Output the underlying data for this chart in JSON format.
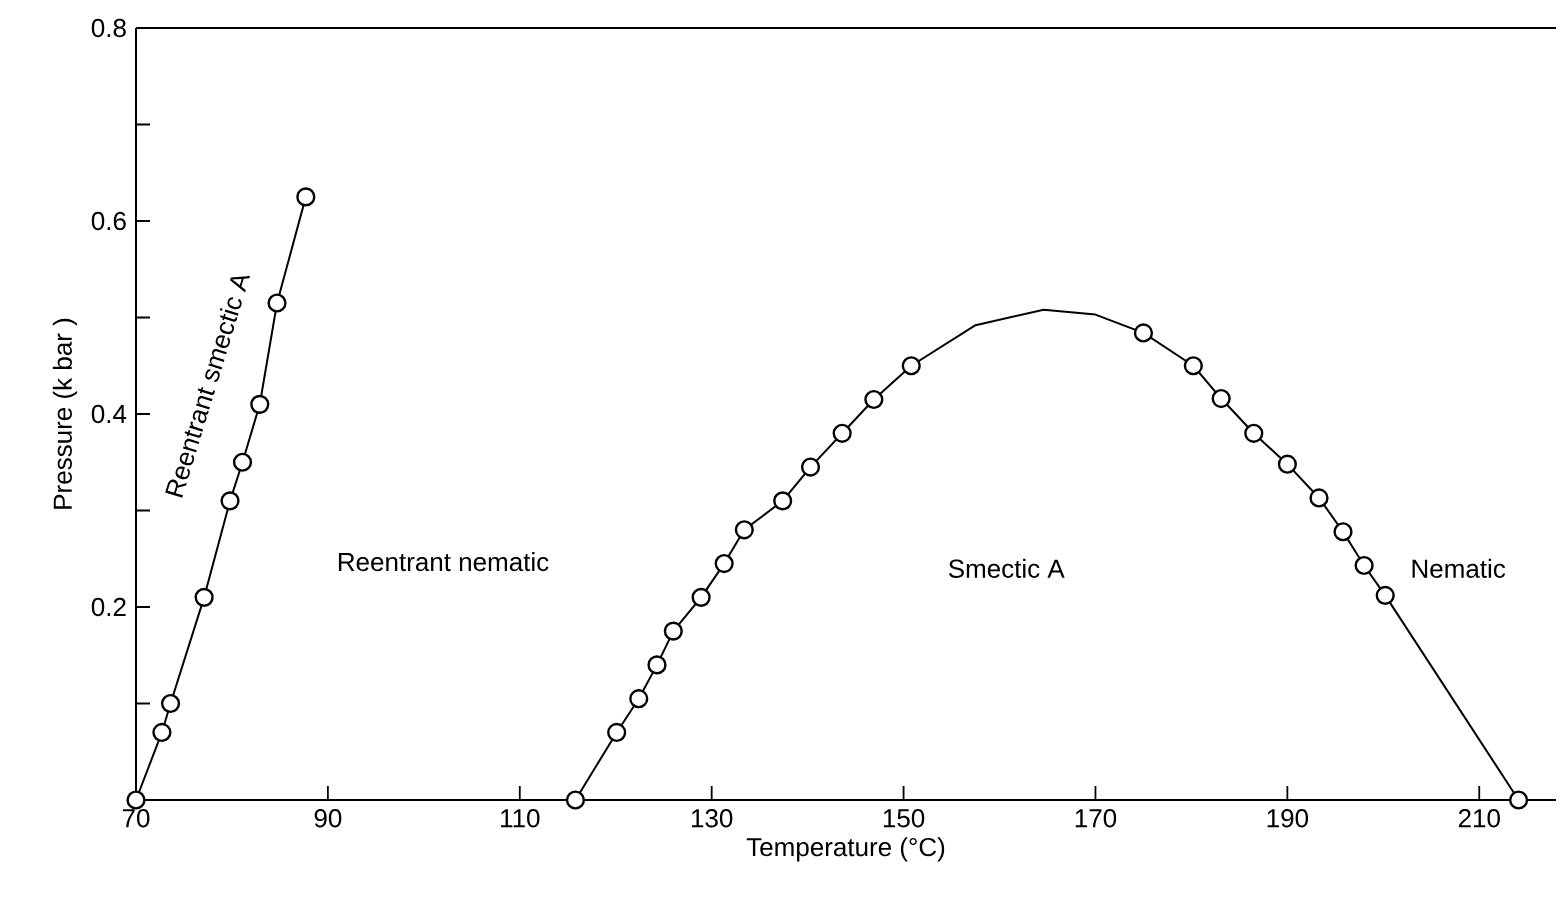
{
  "chart_data": {
    "type": "line",
    "xlabel": "Temperature (°C)",
    "ylabel": "Pressure (k bar )",
    "xlim": [
      70,
      218
    ],
    "xticks": [
      70,
      90,
      110,
      130,
      150,
      170,
      190,
      210
    ],
    "ylim": [
      0,
      0.8
    ],
    "yticks": [
      {
        "value": 0.1,
        "label": null
      },
      0.2,
      {
        "value": 0.3,
        "label": null
      },
      0.4,
      {
        "value": 0.5,
        "label": null
      },
      0.6,
      {
        "value": 0.7,
        "label": null
      },
      0.8
    ],
    "line_style": "solid",
    "series": [
      {
        "color": "#000000",
        "marker": "circle",
        "x": [
          70,
          72.7,
          73.6,
          77.1,
          79.8,
          81.1,
          82.9,
          84.7,
          87.7
        ],
        "values": [
          0,
          0.07,
          0.1,
          0.21,
          0.31,
          0.35,
          0.41,
          0.515,
          0.625
        ]
      },
      {
        "color": "#000000",
        "marker": "circle",
        "x": [
          115.8,
          120.1,
          122.4,
          124.3,
          126.0,
          128.9,
          131.3,
          133.4,
          137.4,
          140.3,
          143.6,
          146.9,
          150.8
        ],
        "values": [
          0,
          0.07,
          0.105,
          0.14,
          0.175,
          0.21,
          0.245,
          0.28,
          0.31,
          0.345,
          0.38,
          0.415,
          0.45
        ]
      },
      {
        "color": "#000000",
        "marker": "none",
        "x": [
          150.8,
          157.5,
          164.6,
          170,
          175.0
        ],
        "values": [
          0.45,
          0.492,
          0.508,
          0.503,
          0.484
        ]
      },
      {
        "color": "#000000",
        "marker": "circle",
        "x": [
          175.0,
          180.2,
          183.1,
          186.5,
          190.0,
          193.3,
          195.8,
          198.0,
          200.2,
          214.1
        ],
        "values": [
          0.484,
          0.45,
          0.416,
          0.38,
          0.348,
          0.313,
          0.278,
          0.243,
          0.212,
          0
        ]
      }
    ],
    "annotations": [
      "Reentrant smectic A",
      "Reentrant nematic",
      "Smectic A",
      "Nematic"
    ]
  }
}
